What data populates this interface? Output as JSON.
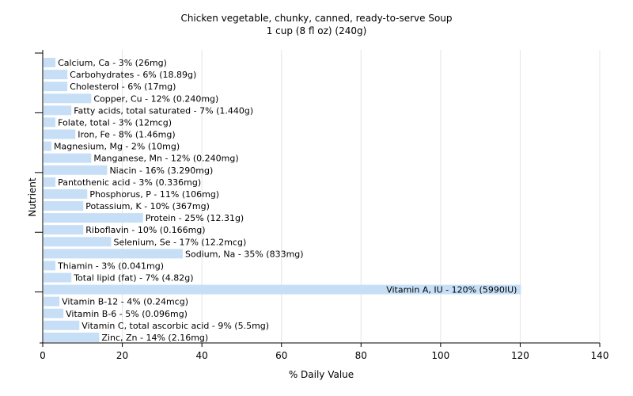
{
  "chart_data": {
    "type": "bar",
    "orientation": "horizontal",
    "title": "Chicken vegetable, chunky, canned, ready-to-serve Soup",
    "subtitle": "1 cup (8 fl oz) (240g)",
    "xlabel": "% Daily Value",
    "ylabel": "Nutrient",
    "xlim": [
      0,
      140
    ],
    "xticks": [
      0,
      20,
      40,
      60,
      80,
      100,
      120,
      140
    ],
    "grid": "vertical",
    "bar_color": "#c6dff7",
    "categories": [
      "Calcium, Ca",
      "Carbohydrates",
      "Cholesterol",
      "Copper, Cu",
      "Fatty acids, total saturated",
      "Folate, total",
      "Iron, Fe",
      "Magnesium, Mg",
      "Manganese, Mn",
      "Niacin",
      "Pantothenic acid",
      "Phosphorus, P",
      "Potassium, K",
      "Protein",
      "Riboflavin",
      "Selenium, Se",
      "Sodium, Na",
      "Thiamin",
      "Total lipid (fat)",
      "Vitamin A, IU",
      "Vitamin B-12",
      "Vitamin B-6",
      "Vitamin C, total ascorbic acid",
      "Zinc, Zn"
    ],
    "values": [
      3,
      6,
      6,
      12,
      7,
      3,
      8,
      2,
      12,
      16,
      3,
      11,
      10,
      25,
      10,
      17,
      35,
      3,
      7,
      120,
      4,
      5,
      9,
      14
    ],
    "labels": [
      "Calcium, Ca - 3% (26mg)",
      "Carbohydrates - 6% (18.89g)",
      "Cholesterol - 6% (17mg)",
      "Copper, Cu - 12% (0.240mg)",
      "Fatty acids, total saturated - 7% (1.440g)",
      "Folate, total - 3% (12mcg)",
      "Iron, Fe - 8% (1.46mg)",
      "Magnesium, Mg - 2% (10mg)",
      "Manganese, Mn - 12% (0.240mg)",
      "Niacin - 16% (3.290mg)",
      "Pantothenic acid - 3% (0.336mg)",
      "Phosphorus, P - 11% (106mg)",
      "Potassium, K - 10% (367mg)",
      "Protein - 25% (12.31g)",
      "Riboflavin - 10% (0.166mg)",
      "Selenium, Se - 17% (12.2mcg)",
      "Sodium, Na - 35% (833mg)",
      "Thiamin - 3% (0.041mg)",
      "Total lipid (fat) - 7% (4.82g)",
      "Vitamin A, IU - 120% (5990IU)",
      "Vitamin B-12 - 4% (0.24mcg)",
      "Vitamin B-6 - 5% (0.096mg)",
      "Vitamin C, total ascorbic acid - 9% (5.5mg)",
      "Zinc, Zn - 14% (2.16mg)"
    ]
  }
}
